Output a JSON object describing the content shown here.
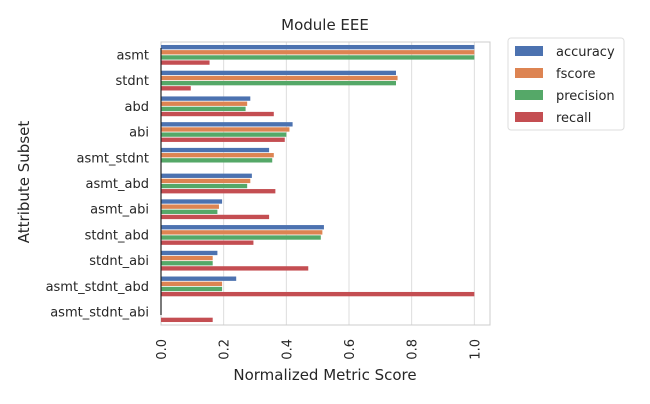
{
  "chart_data": {
    "type": "bar",
    "orientation": "horizontal",
    "title": "Module EEE",
    "xlabel": "Normalized Metric Score",
    "ylabel": "Attribute Subset",
    "xlim": [
      0,
      1.05
    ],
    "xticks": [
      0.0,
      0.2,
      0.4,
      0.6,
      0.8,
      1.0
    ],
    "xtick_labels": [
      "0.0",
      "0.2",
      "0.4",
      "0.6",
      "0.8",
      "1.0"
    ],
    "grid": true,
    "legend_position": "outside-top-right",
    "categories": [
      "asmt",
      "stdnt",
      "abd",
      "abi",
      "asmt_stdnt",
      "asmt_abd",
      "asmt_abi",
      "stdnt_abd",
      "stdnt_abi",
      "asmt_stdnt_abd",
      "asmt_stdnt_abi"
    ],
    "series": [
      {
        "name": "accuracy",
        "color": "#4c72b0",
        "values": [
          1.0,
          0.75,
          0.285,
          0.42,
          0.345,
          0.29,
          0.195,
          0.52,
          0.18,
          0.24,
          0.0
        ]
      },
      {
        "name": "fscore",
        "color": "#dd8452",
        "values": [
          1.0,
          0.755,
          0.275,
          0.41,
          0.36,
          0.285,
          0.185,
          0.515,
          0.165,
          0.195,
          0.0
        ]
      },
      {
        "name": "precision",
        "color": "#55a868",
        "values": [
          1.0,
          0.75,
          0.27,
          0.4,
          0.355,
          0.275,
          0.18,
          0.51,
          0.165,
          0.195,
          0.0
        ]
      },
      {
        "name": "recall",
        "color": "#c44e52",
        "values": [
          0.155,
          0.095,
          0.36,
          0.395,
          0.0,
          0.365,
          0.345,
          0.295,
          0.47,
          1.0,
          0.165
        ]
      }
    ]
  }
}
